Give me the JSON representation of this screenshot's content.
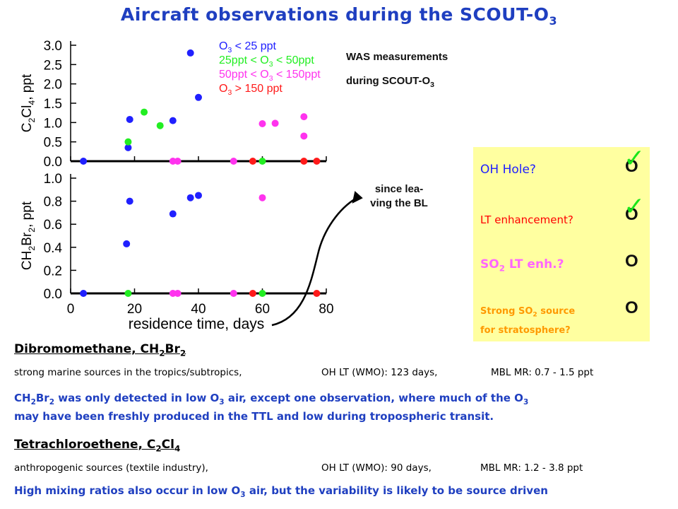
{
  "slide": {
    "title_main": "Aircraft observations during the SCOUT-O",
    "title_sub": "3"
  },
  "annotations": {
    "was_line1": "WAS measurements",
    "was_line2": "during SCOUT-O",
    "was_sub": "3",
    "since_line1": "since lea-",
    "since_line2": "ving the BL"
  },
  "questions": [
    {
      "text": "OH Hole?",
      "color": "#2020ff",
      "status": "O",
      "checked": true
    },
    {
      "text": "LT enhancement?",
      "color": "#ff0000",
      "status": "O",
      "checked": true
    },
    {
      "text_pre": "SO",
      "text_sub": "2",
      "text_post": " LT enh.?",
      "color": "#ff66ff",
      "status": "O",
      "checked": false
    },
    {
      "text_pre": "Strong SO",
      "text_sub": "2",
      "text_post": " source",
      "text_line2": "for stratosphere?",
      "color": "#ff9900",
      "status": "O",
      "checked": false
    }
  ],
  "status_color": "#111111",
  "check_glyph": "✓",
  "sections": {
    "dbm": {
      "heading": "Dibromomethane, CH",
      "heading_sub1": "2",
      "heading_mid": "Br",
      "heading_sub2": "2",
      "sources": "strong marine sources in the tropics/subtropics,",
      "lt": "OH LT (WMO):  123 days,",
      "mr": "MBL MR:    0.7 - 1.5 ppt",
      "note_a": "CH",
      "note_b": "2",
      "note_c": "Br",
      "note_d": "2",
      "note_e": " was only detected in low O",
      "note_f": "3",
      "note_g": " air, except one observation, where much of the O",
      "note_h": "3",
      "note_i": "may have been freshly produced in the TTL and low during tropospheric transit."
    },
    "tce": {
      "heading": "Tetrachloroethene, C",
      "heading_sub1": "2",
      "heading_mid": "Cl",
      "heading_sub2": "4",
      "sources": "anthropogenic sources (textile industry),",
      "lt": "OH LT (WMO): 90 days,",
      "mr": "MBL MR:    1.2 - 3.8 ppt",
      "note_a": "High mixing ratios also occur in low O",
      "note_b": "3",
      "note_c": " air, but the variability is likely to be source driven"
    }
  },
  "chart_data": [
    {
      "type": "scatter",
      "ylabel": "C2Cl4, ppt",
      "ylabel_parts": [
        "C",
        "2",
        "Cl",
        "4",
        ", ppt"
      ],
      "ylim": [
        0,
        3.0
      ],
      "yticks": [
        "0.0",
        "0.5",
        "1.0",
        "1.5",
        "2.0",
        "2.5",
        "3.0"
      ],
      "xlim": [
        0,
        80
      ],
      "legend": [
        {
          "parts": [
            "O",
            "3",
            " < 25 ppt"
          ],
          "color": "#2020ff"
        },
        {
          "parts": [
            "25ppt < O",
            "3",
            " < 50ppt"
          ],
          "color": "#22ee22"
        },
        {
          "parts": [
            "50ppt < O",
            "3",
            " < 150ppt"
          ],
          "color": "#ff33ee"
        },
        {
          "parts": [
            "O",
            "3",
            " > 150 ppt"
          ],
          "color": "#ff1a1a"
        }
      ],
      "series": [
        {
          "color": "#2020ff",
          "points": [
            [
              4,
              0
            ],
            [
              18,
              0.35
            ],
            [
              18.5,
              1.08
            ],
            [
              32,
              1.05
            ],
            [
              37.5,
              2.8
            ],
            [
              40,
              1.65
            ]
          ]
        },
        {
          "color": "#22ee22",
          "points": [
            [
              18,
              0.5
            ],
            [
              23,
              1.27
            ],
            [
              28,
              0.92
            ],
            [
              60,
              0
            ]
          ]
        },
        {
          "color": "#ff33ee",
          "points": [
            [
              32,
              0
            ],
            [
              33.5,
              0
            ],
            [
              51,
              0
            ],
            [
              60,
              0.97
            ],
            [
              64,
              0.98
            ],
            [
              73,
              1.15
            ],
            [
              73,
              0.65
            ]
          ]
        },
        {
          "color": "#ff1a1a",
          "points": [
            [
              57,
              0
            ],
            [
              73,
              0
            ],
            [
              77,
              0
            ]
          ]
        }
      ]
    },
    {
      "type": "scatter",
      "ylabel": "CH2Br2, ppt",
      "ylabel_parts": [
        "CH",
        "2",
        "Br",
        "2",
        ", ppt"
      ],
      "ylim": [
        0,
        1.0
      ],
      "yticks": [
        "0.0",
        "0.2",
        "0.4",
        "0.6",
        "0.8",
        "1.0"
      ],
      "xlim": [
        0,
        80
      ],
      "xticks": [
        "0",
        "20",
        "40",
        "60",
        "80"
      ],
      "xlabel": "residence time, days",
      "series": [
        {
          "color": "#2020ff",
          "points": [
            [
              4,
              0
            ],
            [
              17.5,
              0.43
            ],
            [
              18.5,
              0.8
            ],
            [
              32,
              0.69
            ],
            [
              37.5,
              0.83
            ],
            [
              40,
              0.85
            ]
          ]
        },
        {
          "color": "#22ee22",
          "points": [
            [
              18,
              0
            ],
            [
              60,
              0
            ]
          ]
        },
        {
          "color": "#ff33ee",
          "points": [
            [
              32,
              0
            ],
            [
              33.5,
              0
            ],
            [
              51,
              0
            ],
            [
              60,
              0.83
            ]
          ]
        },
        {
          "color": "#ff1a1a",
          "points": [
            [
              57,
              0
            ],
            [
              77,
              0
            ]
          ]
        }
      ]
    }
  ]
}
